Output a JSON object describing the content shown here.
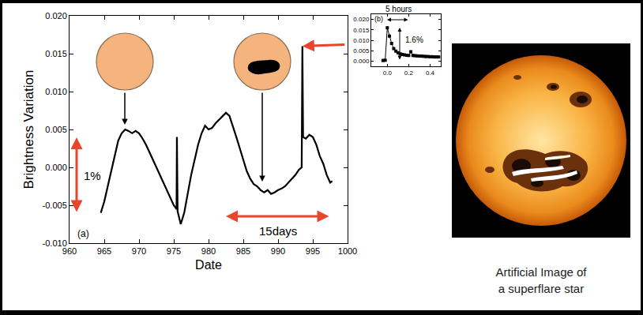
{
  "chart_data": [
    {
      "type": "line",
      "y_label": "Brightness Variation",
      "x_label": "Date",
      "color": "#000000",
      "grid": false,
      "x": [
        964.5,
        965,
        965.5,
        966,
        966.5,
        967,
        967.5,
        968,
        968.5,
        969,
        969.5,
        970,
        970.5,
        971,
        971.5,
        972,
        972.5,
        973,
        973.5,
        974,
        974.5,
        975,
        975.4,
        975.45,
        975.55,
        976,
        976.5,
        977,
        977.5,
        978,
        978.5,
        979,
        979.5,
        980,
        980.5,
        981,
        981.5,
        982,
        982.5,
        983,
        983.5,
        984,
        984.5,
        985,
        985.5,
        986,
        986.5,
        987,
        987.5,
        988,
        988.5,
        989,
        989.5,
        990,
        990.5,
        991,
        991.5,
        992,
        992.5,
        993,
        993.4,
        993.5,
        993.6,
        994,
        994.5,
        995,
        995.5,
        996,
        996.5,
        997,
        997.5,
        997.8
      ],
      "values": [
        -0.006,
        -0.0045,
        -0.0025,
        -0.0005,
        0.0015,
        0.0035,
        0.0045,
        0.005,
        0.0048,
        0.0045,
        0.0048,
        0.0045,
        0.0038,
        0.003,
        0.002,
        0.001,
        0.0,
        -0.001,
        -0.002,
        -0.003,
        -0.004,
        -0.005,
        -0.0055,
        0.004,
        -0.0058,
        -0.0075,
        -0.006,
        -0.0035,
        -0.001,
        0.001,
        0.003,
        0.0045,
        0.0055,
        0.005,
        0.0052,
        0.0058,
        0.0063,
        0.0068,
        0.0072,
        0.0068,
        0.0055,
        0.004,
        0.0025,
        0.001,
        -0.0005,
        -0.0015,
        -0.0022,
        -0.0025,
        -0.003,
        -0.0033,
        -0.003,
        -0.0035,
        -0.0033,
        -0.003,
        -0.0028,
        -0.0025,
        -0.002,
        -0.0015,
        -0.001,
        -0.0003,
        0.0,
        0.016,
        0.004,
        0.0038,
        0.0043,
        0.004,
        0.003,
        0.0015,
        0.0005,
        -0.001,
        -0.002,
        -0.0018
      ],
      "xlim": [
        960,
        1000
      ],
      "xticks": [
        960,
        965,
        970,
        975,
        980,
        985,
        990,
        995,
        1000
      ],
      "ylim": [
        -0.01,
        0.02
      ],
      "yticks": [
        {
          "value": -0.01,
          "label": "-0.010"
        },
        {
          "value": -0.005,
          "label": "-0.005"
        },
        {
          "value": 0,
          "label": "0.000"
        },
        {
          "value": 0.005,
          "label": "0.005"
        },
        {
          "value": 0.01,
          "label": "0.010"
        },
        {
          "value": 0.015,
          "label": "0.015"
        },
        {
          "value": 0.02,
          "label": "0.020"
        }
      ],
      "annotations": [
        "(a)",
        "1%",
        "15days"
      ]
    },
    {
      "type": "line",
      "marker": "square",
      "color": "#000000",
      "grid": false,
      "x": [
        -0.04,
        -0.02,
        0.0,
        0.02,
        0.04,
        0.06,
        0.08,
        0.1,
        0.12,
        0.14,
        0.16,
        0.18,
        0.2,
        0.22,
        0.24,
        0.26,
        0.28,
        0.3,
        0.32,
        0.34,
        0.36,
        0.38,
        0.4,
        0.42,
        0.44,
        0.46,
        0.48
      ],
      "values": [
        0.0003,
        0.0004,
        0.016,
        0.012,
        0.0085,
        0.006,
        0.0048,
        0.004,
        0.0035,
        0.0032,
        0.003,
        0.0028,
        0.0027,
        0.0045,
        0.0027,
        0.0026,
        0.0025,
        0.0024,
        0.0024,
        0.0023,
        0.0022,
        0.0022,
        0.0021,
        0.0021,
        0.002,
        0.002,
        0.002
      ],
      "xlim": [
        -0.15,
        0.5
      ],
      "xticks": [
        {
          "value": 0,
          "label": "0.0"
        },
        {
          "value": 0.2,
          "label": "0.2"
        },
        {
          "value": 0.4,
          "label": "0.4"
        }
      ],
      "ylim": [
        -0.0025,
        0.0225
      ],
      "yticks": [
        {
          "value": 0,
          "label": "0.000"
        },
        {
          "value": 0.005,
          "label": "0.005"
        },
        {
          "value": 0.01,
          "label": "0.010"
        },
        {
          "value": 0.015,
          "label": "0.015"
        },
        {
          "value": 0.02,
          "label": "0.020"
        }
      ],
      "annotations": [
        "(b)",
        "5 hours",
        "1.6%"
      ]
    }
  ],
  "image_caption": [
    "Artificial Image of",
    "a superflare star"
  ]
}
